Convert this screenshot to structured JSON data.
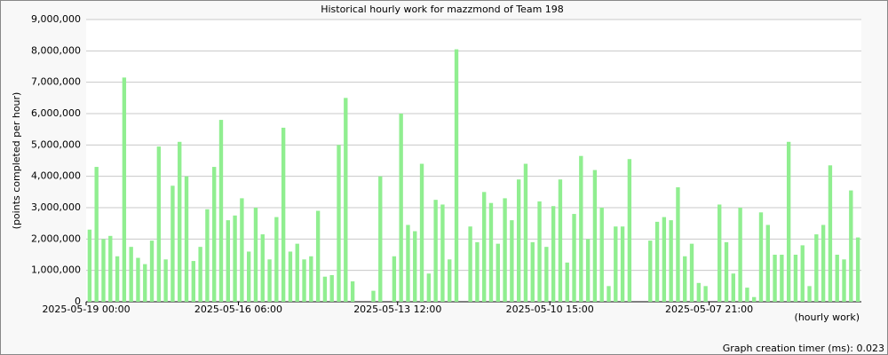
{
  "chart_data": {
    "type": "bar",
    "title": "Historical hourly work for mazzmond of Team 198",
    "y_label": "(points completed per hour)",
    "x_label": "(hourly work)",
    "footer": "Graph creation timer (ms): 0.023",
    "color": "#90ee90",
    "grid": true,
    "ylim": [
      0,
      9000000
    ],
    "yticks": [
      {
        "value": 0,
        "label": "0"
      },
      {
        "value": 1000000,
        "label": "1,000,000"
      },
      {
        "value": 2000000,
        "label": "2,000,000"
      },
      {
        "value": 3000000,
        "label": "3,000,000"
      },
      {
        "value": 4000000,
        "label": "4,000,000"
      },
      {
        "value": 5000000,
        "label": "5,000,000"
      },
      {
        "value": 6000000,
        "label": "6,000,000"
      },
      {
        "value": 7000000,
        "label": "7,000,000"
      },
      {
        "value": 8000000,
        "label": "8,000,000"
      },
      {
        "value": 9000000,
        "label": "9,000,000"
      }
    ],
    "categories": [
      "2025-05-19 00:00",
      null,
      null,
      null,
      null,
      null,
      null,
      null,
      null,
      null,
      null,
      null,
      null,
      null,
      null,
      null,
      null,
      null,
      null,
      null,
      null,
      null,
      "2025-05-16 06:00",
      null,
      null,
      null,
      null,
      null,
      null,
      null,
      null,
      null,
      null,
      null,
      null,
      null,
      null,
      null,
      null,
      null,
      null,
      null,
      null,
      null,
      null,
      "2025-05-13 12:00",
      null,
      null,
      null,
      null,
      null,
      null,
      null,
      null,
      null,
      null,
      null,
      null,
      null,
      null,
      null,
      null,
      null,
      null,
      null,
      null,
      null,
      "2025-05-10 15:00",
      null,
      null,
      null,
      null,
      null,
      null,
      null,
      null,
      null,
      null,
      null,
      null,
      null,
      null,
      null,
      null,
      null,
      null,
      null,
      null,
      null,
      null,
      "2025-05-07 21:00",
      null,
      null,
      null,
      null,
      null,
      null,
      null,
      null,
      null,
      null,
      null,
      null,
      null,
      null,
      null,
      null,
      null,
      null,
      null,
      null,
      null
    ],
    "values": [
      2300000,
      4300000,
      2000000,
      2100000,
      1450000,
      7150000,
      1750000,
      1400000,
      1200000,
      1950000,
      4950000,
      1350000,
      3700000,
      5100000,
      4000000,
      1300000,
      1750000,
      2950000,
      4300000,
      5800000,
      2600000,
      2750000,
      3300000,
      1600000,
      3000000,
      2150000,
      1350000,
      2700000,
      5550000,
      1600000,
      1850000,
      1350000,
      1450000,
      2900000,
      800000,
      850000,
      5000000,
      6500000,
      650000,
      0,
      0,
      350000,
      4000000,
      0,
      1450000,
      6000000,
      2450000,
      2250000,
      4400000,
      900000,
      3250000,
      3100000,
      1350000,
      8050000,
      0,
      2400000,
      1900000,
      3500000,
      3150000,
      1850000,
      3300000,
      2600000,
      3900000,
      4400000,
      1900000,
      3200000,
      1750000,
      3050000,
      3900000,
      1250000,
      2800000,
      4650000,
      2000000,
      4200000,
      3000000,
      500000,
      2400000,
      2400000,
      4550000,
      0,
      0,
      1950000,
      2550000,
      2700000,
      2600000,
      3650000,
      1450000,
      1850000,
      600000,
      500000,
      0,
      3100000,
      1900000,
      900000,
      3000000,
      450000,
      150000,
      2850000,
      2450000,
      1500000,
      1500000,
      5100000,
      1500000,
      1800000,
      500000,
      2150000,
      2450000,
      4350000,
      1500000,
      1350000,
      3550000,
      2050000
    ]
  }
}
